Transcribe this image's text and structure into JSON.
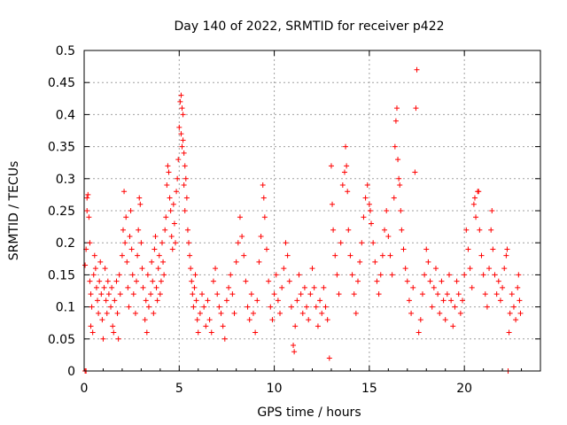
{
  "chart_data": {
    "type": "scatter",
    "title": "Day 140 of 2022, SRMTID for receiver p422",
    "xlabel": "GPS time / hours",
    "ylabel": "SRMTID / TECUs",
    "xlim": [
      0,
      24
    ],
    "ylim": [
      0,
      0.5
    ],
    "x_ticks": [
      0,
      5,
      10,
      15,
      20
    ],
    "x_tick_labels": [
      "0",
      "5",
      "10",
      "15",
      "20"
    ],
    "y_ticks": [
      0,
      0.05,
      0.1,
      0.15,
      0.2,
      0.25,
      0.3,
      0.35,
      0.4,
      0.45,
      0.5
    ],
    "y_tick_labels": [
      "0",
      "0.05",
      "0.1",
      "0.15",
      "0.2",
      "0.25",
      "0.3",
      "0.35",
      "0.4",
      "0.45",
      "0.5"
    ],
    "grid": true,
    "marker": "+",
    "color": "#ff0000",
    "series": [
      {
        "name": "SRMTID p422",
        "points": [
          [
            0.05,
            0.0
          ],
          [
            0.1,
            0.0
          ],
          [
            0.05,
            0.165
          ],
          [
            0.1,
            0.19
          ],
          [
            0.15,
            0.25
          ],
          [
            0.2,
            0.275
          ],
          [
            0.15,
            0.27
          ],
          [
            0.25,
            0.24
          ],
          [
            0.3,
            0.2
          ],
          [
            0.3,
            0.14
          ],
          [
            0.35,
            0.12
          ],
          [
            0.4,
            0.1
          ],
          [
            0.35,
            0.07
          ],
          [
            0.45,
            0.06
          ],
          [
            0.5,
            0.15
          ],
          [
            0.55,
            0.18
          ],
          [
            0.6,
            0.16
          ],
          [
            0.65,
            0.13
          ],
          [
            0.7,
            0.11
          ],
          [
            0.75,
            0.09
          ],
          [
            0.8,
            0.14
          ],
          [
            0.85,
            0.17
          ],
          [
            0.9,
            0.12
          ],
          [
            0.95,
            0.08
          ],
          [
            1.0,
            0.05
          ],
          [
            1.05,
            0.13
          ],
          [
            1.1,
            0.16
          ],
          [
            1.15,
            0.11
          ],
          [
            1.2,
            0.09
          ],
          [
            1.25,
            0.14
          ],
          [
            1.3,
            0.12
          ],
          [
            1.4,
            0.1
          ],
          [
            1.45,
            0.13
          ],
          [
            1.5,
            0.07
          ],
          [
            1.55,
            0.06
          ],
          [
            1.6,
            0.11
          ],
          [
            1.7,
            0.14
          ],
          [
            1.75,
            0.09
          ],
          [
            1.8,
            0.05
          ],
          [
            1.85,
            0.15
          ],
          [
            1.9,
            0.12
          ],
          [
            2.0,
            0.18
          ],
          [
            2.05,
            0.22
          ],
          [
            2.1,
            0.28
          ],
          [
            2.15,
            0.2
          ],
          [
            2.2,
            0.24
          ],
          [
            2.25,
            0.17
          ],
          [
            2.3,
            0.13
          ],
          [
            2.35,
            0.1
          ],
          [
            2.4,
            0.21
          ],
          [
            2.45,
            0.25
          ],
          [
            2.5,
            0.19
          ],
          [
            2.55,
            0.15
          ],
          [
            2.6,
            0.12
          ],
          [
            2.7,
            0.09
          ],
          [
            2.75,
            0.14
          ],
          [
            2.8,
            0.18
          ],
          [
            2.85,
            0.22
          ],
          [
            2.9,
            0.27
          ],
          [
            2.95,
            0.26
          ],
          [
            3.0,
            0.2
          ],
          [
            3.05,
            0.16
          ],
          [
            3.1,
            0.13
          ],
          [
            3.2,
            0.08
          ],
          [
            3.25,
            0.11
          ],
          [
            3.3,
            0.06
          ],
          [
            3.35,
            0.15
          ],
          [
            3.4,
            0.1
          ],
          [
            3.5,
            0.12
          ],
          [
            3.55,
            0.17
          ],
          [
            3.6,
            0.14
          ],
          [
            3.65,
            0.09
          ],
          [
            3.7,
            0.19
          ],
          [
            3.75,
            0.21
          ],
          [
            3.8,
            0.13
          ],
          [
            3.85,
            0.11
          ],
          [
            3.9,
            0.16
          ],
          [
            3.95,
            0.18
          ],
          [
            4.0,
            0.12
          ],
          [
            4.05,
            0.14
          ],
          [
            4.1,
            0.2
          ],
          [
            4.15,
            0.17
          ],
          [
            4.2,
            0.15
          ],
          [
            4.25,
            0.22
          ],
          [
            4.3,
            0.24
          ],
          [
            4.35,
            0.29
          ],
          [
            4.4,
            0.32
          ],
          [
            4.45,
            0.31
          ],
          [
            4.5,
            0.27
          ],
          [
            4.55,
            0.25
          ],
          [
            4.6,
            0.21
          ],
          [
            4.65,
            0.19
          ],
          [
            4.7,
            0.26
          ],
          [
            4.75,
            0.23
          ],
          [
            4.8,
            0.2
          ],
          [
            4.85,
            0.28
          ],
          [
            4.9,
            0.3
          ],
          [
            4.95,
            0.33
          ],
          [
            5.0,
            0.38
          ],
          [
            5.05,
            0.42
          ],
          [
            5.1,
            0.43
          ],
          [
            5.15,
            0.41
          ],
          [
            5.2,
            0.4
          ],
          [
            5.1,
            0.37
          ],
          [
            5.2,
            0.36
          ],
          [
            5.15,
            0.35
          ],
          [
            5.25,
            0.34
          ],
          [
            5.3,
            0.32
          ],
          [
            5.35,
            0.3
          ],
          [
            5.25,
            0.29
          ],
          [
            5.4,
            0.27
          ],
          [
            5.3,
            0.25
          ],
          [
            5.45,
            0.22
          ],
          [
            5.5,
            0.2
          ],
          [
            5.55,
            0.18
          ],
          [
            5.6,
            0.16
          ],
          [
            5.65,
            0.14
          ],
          [
            5.7,
            0.12
          ],
          [
            5.75,
            0.1
          ],
          [
            5.8,
            0.13
          ],
          [
            5.85,
            0.15
          ],
          [
            5.9,
            0.11
          ],
          [
            5.95,
            0.08
          ],
          [
            6.0,
            0.06
          ],
          [
            6.1,
            0.09
          ],
          [
            6.2,
            0.12
          ],
          [
            6.3,
            0.1
          ],
          [
            6.4,
            0.07
          ],
          [
            6.5,
            0.11
          ],
          [
            6.6,
            0.08
          ],
          [
            6.7,
            0.06
          ],
          [
            6.8,
            0.14
          ],
          [
            6.9,
            0.16
          ],
          [
            7.0,
            0.12
          ],
          [
            7.1,
            0.1
          ],
          [
            7.2,
            0.09
          ],
          [
            7.3,
            0.07
          ],
          [
            7.4,
            0.05
          ],
          [
            7.5,
            0.11
          ],
          [
            7.6,
            0.13
          ],
          [
            7.7,
            0.15
          ],
          [
            7.8,
            0.12
          ],
          [
            7.9,
            0.09
          ],
          [
            8.0,
            0.17
          ],
          [
            8.1,
            0.2
          ],
          [
            8.2,
            0.24
          ],
          [
            8.3,
            0.21
          ],
          [
            8.4,
            0.18
          ],
          [
            8.5,
            0.14
          ],
          [
            8.6,
            0.1
          ],
          [
            8.7,
            0.08
          ],
          [
            8.8,
            0.12
          ],
          [
            8.9,
            0.09
          ],
          [
            9.0,
            0.06
          ],
          [
            9.1,
            0.11
          ],
          [
            9.2,
            0.17
          ],
          [
            9.3,
            0.21
          ],
          [
            9.4,
            0.29
          ],
          [
            9.45,
            0.27
          ],
          [
            9.5,
            0.24
          ],
          [
            9.6,
            0.19
          ],
          [
            9.7,
            0.14
          ],
          [
            9.8,
            0.1
          ],
          [
            9.9,
            0.08
          ],
          [
            10.0,
            0.12
          ],
          [
            10.1,
            0.15
          ],
          [
            10.2,
            0.11
          ],
          [
            10.3,
            0.09
          ],
          [
            10.4,
            0.13
          ],
          [
            10.5,
            0.16
          ],
          [
            10.6,
            0.2
          ],
          [
            10.7,
            0.18
          ],
          [
            10.8,
            0.14
          ],
          [
            10.9,
            0.1
          ],
          [
            11.0,
            0.04
          ],
          [
            11.05,
            0.03
          ],
          [
            11.1,
            0.07
          ],
          [
            11.2,
            0.11
          ],
          [
            11.3,
            0.15
          ],
          [
            11.4,
            0.12
          ],
          [
            11.5,
            0.09
          ],
          [
            11.6,
            0.13
          ],
          [
            11.7,
            0.1
          ],
          [
            11.8,
            0.08
          ],
          [
            11.9,
            0.12
          ],
          [
            12.0,
            0.16
          ],
          [
            12.1,
            0.13
          ],
          [
            12.2,
            0.1
          ],
          [
            12.3,
            0.07
          ],
          [
            12.4,
            0.11
          ],
          [
            12.5,
            0.09
          ],
          [
            12.6,
            0.13
          ],
          [
            12.7,
            0.1
          ],
          [
            12.8,
            0.08
          ],
          [
            12.9,
            0.02
          ],
          [
            13.0,
            0.32
          ],
          [
            13.05,
            0.26
          ],
          [
            13.1,
            0.22
          ],
          [
            13.2,
            0.18
          ],
          [
            13.3,
            0.15
          ],
          [
            13.4,
            0.12
          ],
          [
            13.5,
            0.2
          ],
          [
            13.6,
            0.29
          ],
          [
            13.7,
            0.31
          ],
          [
            13.75,
            0.35
          ],
          [
            13.8,
            0.32
          ],
          [
            13.85,
            0.28
          ],
          [
            13.9,
            0.22
          ],
          [
            14.0,
            0.18
          ],
          [
            14.1,
            0.15
          ],
          [
            14.2,
            0.12
          ],
          [
            14.3,
            0.09
          ],
          [
            14.4,
            0.14
          ],
          [
            14.5,
            0.17
          ],
          [
            14.6,
            0.2
          ],
          [
            14.7,
            0.24
          ],
          [
            14.8,
            0.27
          ],
          [
            14.9,
            0.29
          ],
          [
            15.0,
            0.26
          ],
          [
            15.05,
            0.25
          ],
          [
            15.1,
            0.23
          ],
          [
            15.2,
            0.2
          ],
          [
            15.3,
            0.17
          ],
          [
            15.4,
            0.14
          ],
          [
            15.5,
            0.12
          ],
          [
            15.6,
            0.15
          ],
          [
            15.7,
            0.18
          ],
          [
            15.8,
            0.22
          ],
          [
            15.9,
            0.25
          ],
          [
            16.0,
            0.21
          ],
          [
            16.1,
            0.18
          ],
          [
            16.2,
            0.15
          ],
          [
            16.3,
            0.27
          ],
          [
            16.35,
            0.35
          ],
          [
            16.4,
            0.39
          ],
          [
            16.45,
            0.41
          ],
          [
            16.5,
            0.33
          ],
          [
            16.55,
            0.3
          ],
          [
            16.6,
            0.29
          ],
          [
            16.65,
            0.25
          ],
          [
            16.7,
            0.22
          ],
          [
            16.8,
            0.19
          ],
          [
            16.9,
            0.16
          ],
          [
            17.0,
            0.14
          ],
          [
            17.1,
            0.11
          ],
          [
            17.2,
            0.09
          ],
          [
            17.3,
            0.13
          ],
          [
            17.4,
            0.31
          ],
          [
            17.45,
            0.41
          ],
          [
            17.5,
            0.47
          ],
          [
            17.6,
            0.06
          ],
          [
            17.7,
            0.08
          ],
          [
            17.8,
            0.12
          ],
          [
            17.9,
            0.15
          ],
          [
            18.0,
            0.19
          ],
          [
            18.1,
            0.17
          ],
          [
            18.2,
            0.14
          ],
          [
            18.3,
            0.1
          ],
          [
            18.4,
            0.13
          ],
          [
            18.5,
            0.16
          ],
          [
            18.6,
            0.12
          ],
          [
            18.7,
            0.09
          ],
          [
            18.8,
            0.14
          ],
          [
            18.9,
            0.11
          ],
          [
            19.0,
            0.08
          ],
          [
            19.1,
            0.12
          ],
          [
            19.2,
            0.15
          ],
          [
            19.3,
            0.11
          ],
          [
            19.4,
            0.07
          ],
          [
            19.5,
            0.1
          ],
          [
            19.6,
            0.14
          ],
          [
            19.7,
            0.12
          ],
          [
            19.8,
            0.09
          ],
          [
            19.9,
            0.11
          ],
          [
            20.0,
            0.15
          ],
          [
            20.1,
            0.22
          ],
          [
            20.2,
            0.19
          ],
          [
            20.3,
            0.16
          ],
          [
            20.4,
            0.13
          ],
          [
            20.5,
            0.26
          ],
          [
            20.55,
            0.27
          ],
          [
            20.6,
            0.24
          ],
          [
            20.7,
            0.28
          ],
          [
            20.75,
            0.28
          ],
          [
            20.8,
            0.22
          ],
          [
            20.9,
            0.18
          ],
          [
            21.0,
            0.15
          ],
          [
            21.1,
            0.12
          ],
          [
            21.2,
            0.1
          ],
          [
            21.3,
            0.16
          ],
          [
            21.4,
            0.22
          ],
          [
            21.45,
            0.25
          ],
          [
            21.5,
            0.19
          ],
          [
            21.6,
            0.15
          ],
          [
            21.7,
            0.12
          ],
          [
            21.8,
            0.14
          ],
          [
            21.9,
            0.11
          ],
          [
            22.0,
            0.13
          ],
          [
            22.1,
            0.16
          ],
          [
            22.2,
            0.18
          ],
          [
            22.25,
            0.19
          ],
          [
            22.3,
            0.0
          ],
          [
            22.35,
            0.06
          ],
          [
            22.4,
            0.09
          ],
          [
            22.5,
            0.12
          ],
          [
            22.6,
            0.1
          ],
          [
            22.7,
            0.08
          ],
          [
            22.8,
            0.13
          ],
          [
            22.85,
            0.15
          ],
          [
            22.9,
            0.11
          ],
          [
            22.95,
            0.09
          ]
        ]
      }
    ]
  }
}
